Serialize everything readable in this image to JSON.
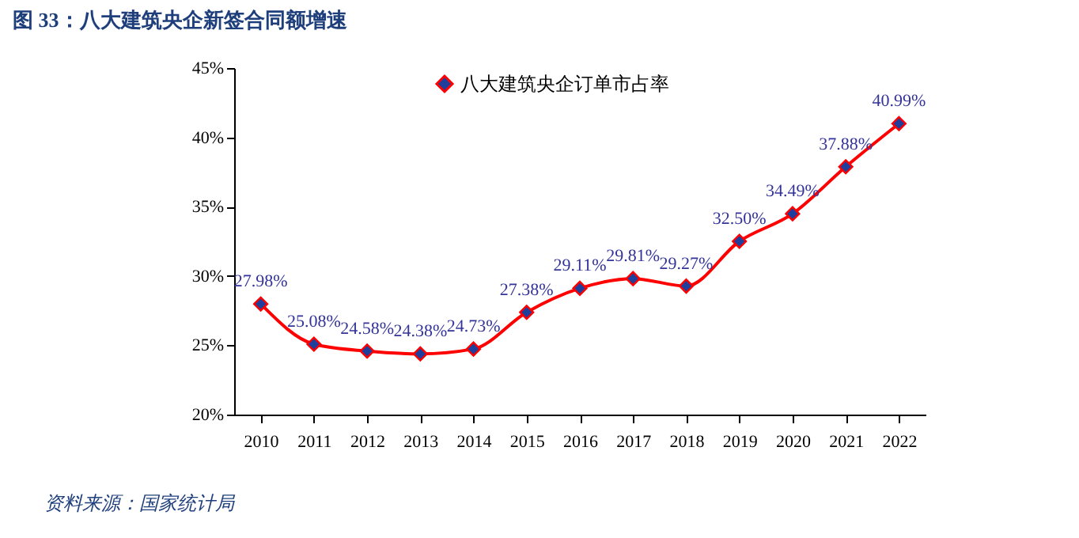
{
  "chart_data": {
    "type": "line",
    "title": "图 33：八大建筑央企新签合同额增速",
    "categories": [
      "2010",
      "2011",
      "2012",
      "2013",
      "2014",
      "2015",
      "2016",
      "2017",
      "2018",
      "2019",
      "2020",
      "2021",
      "2022"
    ],
    "series": [
      {
        "name": "八大建筑央企订单市占率",
        "color": "#ff0000",
        "values": [
          27.98,
          25.08,
          24.58,
          24.38,
          24.73,
          27.38,
          29.11,
          29.81,
          29.27,
          32.5,
          34.49,
          37.88,
          40.99
        ]
      }
    ],
    "value_labels": [
      "27.98%",
      "25.08%",
      "24.58%",
      "24.38%",
      "24.73%",
      "27.38%",
      "29.11%",
      "29.81%",
      "29.27%",
      "32.50%",
      "34.49%",
      "37.88%",
      "40.99%"
    ],
    "ylim": [
      20,
      45
    ],
    "yticks": [
      {
        "value": 20,
        "label": "20%"
      },
      {
        "value": 25,
        "label": "25%"
      },
      {
        "value": 30,
        "label": "30%"
      },
      {
        "value": 35,
        "label": "35%"
      },
      {
        "value": 40,
        "label": "40%"
      },
      {
        "value": 45,
        "label": "45%"
      }
    ],
    "grid": false,
    "legend": "top left",
    "marker": "diamond",
    "line_style": "solid",
    "annotations": [
      "资料来源：国家统计局"
    ]
  }
}
